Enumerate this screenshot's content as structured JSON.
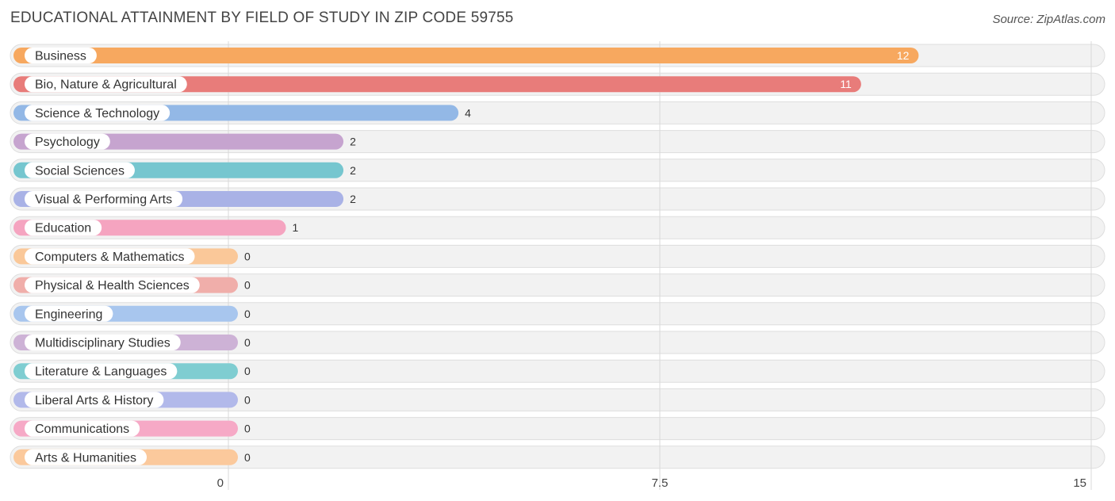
{
  "header": {
    "title": "EDUCATIONAL ATTAINMENT BY FIELD OF STUDY IN ZIP CODE 59755",
    "source": "Source: ZipAtlas.com"
  },
  "chart_data": {
    "type": "bar",
    "orientation": "horizontal",
    "title": "EDUCATIONAL ATTAINMENT BY FIELD OF STUDY IN ZIP CODE 59755",
    "xlim": [
      0,
      15
    ],
    "x_ticks": [
      "0",
      "7.5",
      "15"
    ],
    "x_tick_values": [
      0,
      7.5,
      15
    ],
    "grid": true,
    "categories": [
      "Business",
      "Bio, Nature & Agricultural",
      "Science & Technology",
      "Psychology",
      "Social Sciences",
      "Visual & Performing Arts",
      "Education",
      "Computers & Mathematics",
      "Physical & Health Sciences",
      "Engineering",
      "Multidisciplinary Studies",
      "Literature & Languages",
      "Liberal Arts & History",
      "Communications",
      "Arts & Humanities"
    ],
    "values": [
      12,
      11,
      4,
      2,
      2,
      2,
      1,
      0,
      0,
      0,
      0,
      0,
      0,
      0,
      0
    ],
    "colors": [
      "#f7a85f",
      "#e87c7a",
      "#93b8e6",
      "#c6a4cf",
      "#76c6cf",
      "#a9b2e6",
      "#f5a4c0",
      "#fac899",
      "#f0aeaa",
      "#a8c6ee",
      "#cdb2d6",
      "#7fcdd1",
      "#b2b9ea",
      "#f6a9c6",
      "#fbc99c"
    ]
  }
}
